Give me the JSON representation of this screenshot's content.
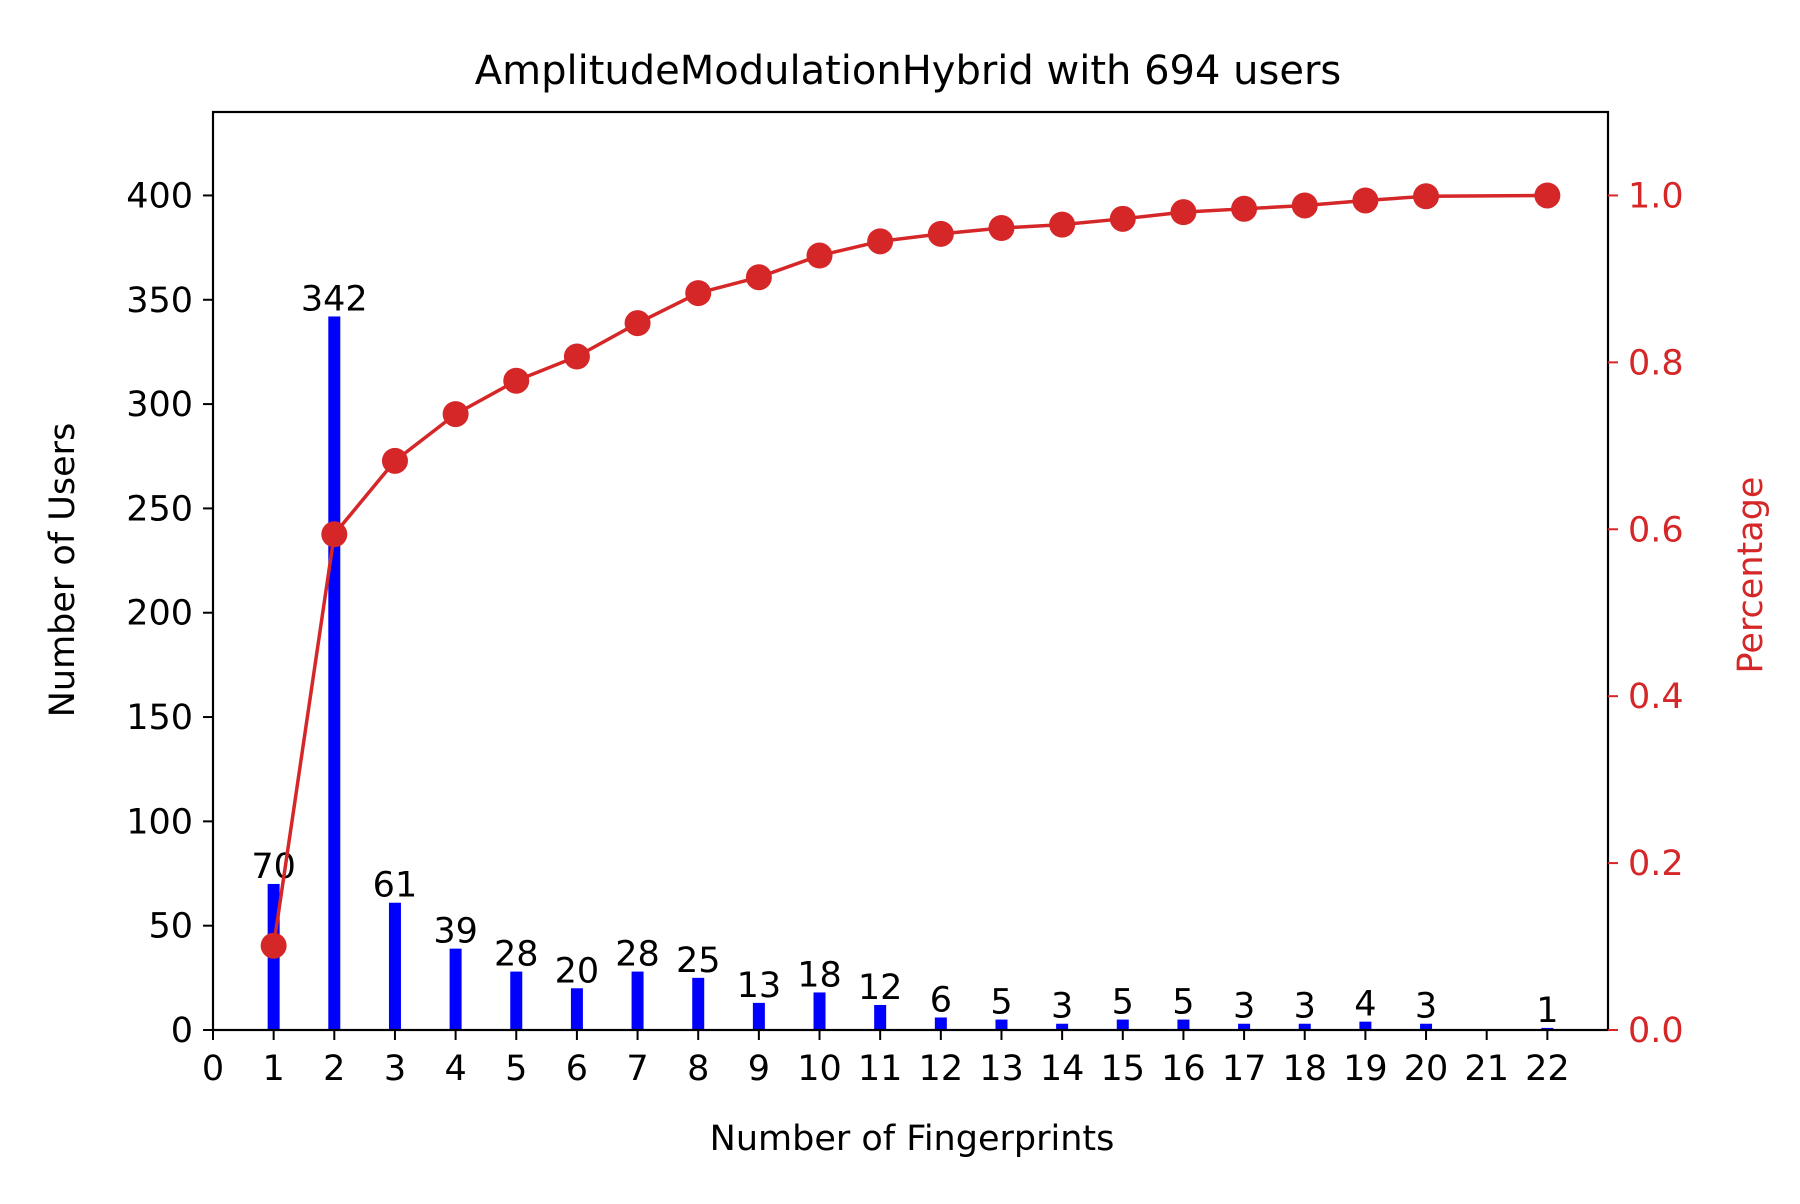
{
  "chart_data": {
    "type": "bar",
    "title": "AmplitudeModulationHybrid with 694 users",
    "xlabel": "Number of Fingerprints",
    "ylabel": "Number of Users",
    "y2label": "Percentage",
    "x_ticks": [
      "0",
      "1",
      "2",
      "3",
      "4",
      "5",
      "6",
      "7",
      "8",
      "9",
      "10",
      "11",
      "12",
      "13",
      "14",
      "15",
      "16",
      "17",
      "18",
      "19",
      "20",
      "21",
      "22"
    ],
    "xlim": [
      0,
      23
    ],
    "ylim": [
      0,
      440
    ],
    "y_ticks": [
      0,
      50,
      100,
      150,
      200,
      250,
      300,
      350,
      400
    ],
    "y2lim": [
      0,
      1.1
    ],
    "y2_ticks": [
      "0.0",
      "0.2",
      "0.4",
      "0.6",
      "0.8",
      "1.0"
    ],
    "grid": false,
    "bars": {
      "color": "#0000ff",
      "x": [
        1,
        2,
        3,
        4,
        5,
        6,
        7,
        8,
        9,
        10,
        11,
        12,
        13,
        14,
        15,
        16,
        17,
        18,
        19,
        20,
        22
      ],
      "values": [
        70,
        342,
        61,
        39,
        28,
        20,
        28,
        25,
        13,
        18,
        12,
        6,
        5,
        3,
        5,
        5,
        3,
        3,
        4,
        3,
        1
      ],
      "labels": [
        "70",
        "342",
        "61",
        "39",
        "28",
        "20",
        "28",
        "25",
        "13",
        "18",
        "12",
        "6",
        "5",
        "3",
        "5",
        "5",
        "3",
        "3",
        "4",
        "3",
        "1"
      ]
    },
    "line": {
      "color": "#d62728",
      "x": [
        1,
        2,
        3,
        4,
        5,
        6,
        7,
        8,
        9,
        10,
        11,
        12,
        13,
        14,
        15,
        16,
        17,
        18,
        19,
        20,
        22
      ],
      "values": [
        0.101,
        0.594,
        0.682,
        0.738,
        0.778,
        0.807,
        0.847,
        0.883,
        0.902,
        0.928,
        0.945,
        0.954,
        0.961,
        0.965,
        0.972,
        0.98,
        0.984,
        0.988,
        0.994,
        0.999,
        1.0
      ]
    }
  }
}
